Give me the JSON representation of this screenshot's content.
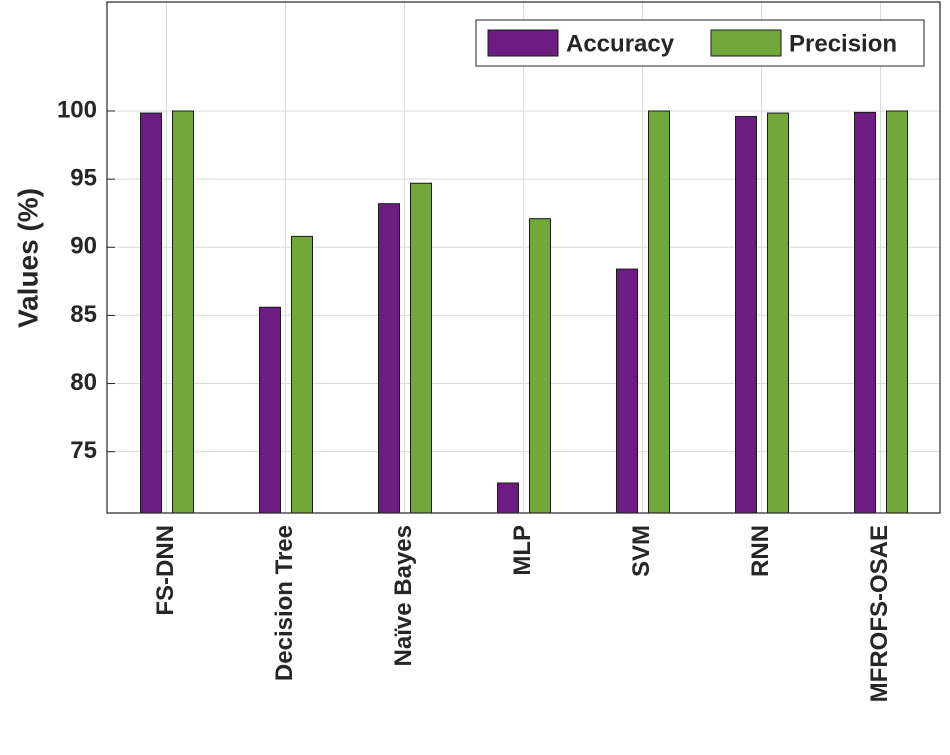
{
  "chart_data": {
    "type": "bar",
    "ylabel": "Values (%)",
    "categories": [
      "FS-DNN",
      "Decision Tree",
      "Naïve Bayes",
      "MLP",
      "SVM",
      "RNN",
      "MFROFS-OSAE"
    ],
    "series": [
      {
        "name": "Accuracy",
        "color": "#6b1d82",
        "values": [
          99.85,
          85.6,
          93.2,
          72.7,
          88.4,
          99.6,
          99.9
        ]
      },
      {
        "name": "Precision",
        "color": "#72a83a",
        "values": [
          100,
          90.8,
          94.7,
          92.1,
          100,
          99.85,
          100
        ]
      }
    ],
    "ylim": [
      70.5,
      108
    ],
    "yticks": [
      75,
      80,
      85,
      90,
      95,
      100
    ],
    "grid": true,
    "legend": "top-right"
  }
}
